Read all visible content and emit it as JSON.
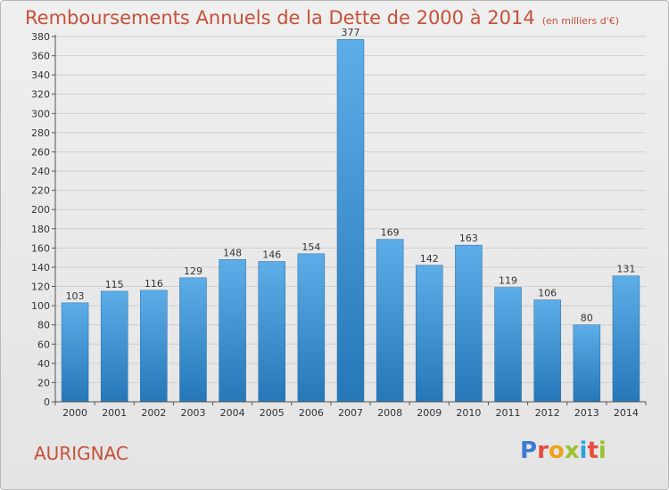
{
  "header": {
    "title": "Remboursements Annuels de la Dette de 2000 à 2014",
    "subtitle": "(en milliers d'€)"
  },
  "footer": {
    "commune": "AURIGNAC",
    "logo_text": "Proxiti"
  },
  "colors": {
    "title": "#c8503a",
    "bar_light": "#5dade8",
    "bar_dark": "#2577b8",
    "logo_letters": [
      "#3b7bd4",
      "#e94b3c",
      "#f1a21b",
      "#9bc12e",
      "#2aa2dd",
      "#e94b3c",
      "#9bc12e"
    ]
  },
  "chart_data": {
    "type": "bar",
    "categories": [
      "2000",
      "2001",
      "2002",
      "2003",
      "2004",
      "2005",
      "2006",
      "2007",
      "2008",
      "2009",
      "2010",
      "2011",
      "2012",
      "2013",
      "2014"
    ],
    "values": [
      103,
      115,
      116,
      129,
      148,
      146,
      154,
      377,
      169,
      142,
      163,
      119,
      106,
      80,
      131
    ],
    "ylim": [
      0,
      380
    ],
    "ytick_step": 20,
    "grid": true,
    "title": "Remboursements Annuels de la Dette de 2000 à 2014",
    "xlabel": "",
    "ylabel": ""
  }
}
